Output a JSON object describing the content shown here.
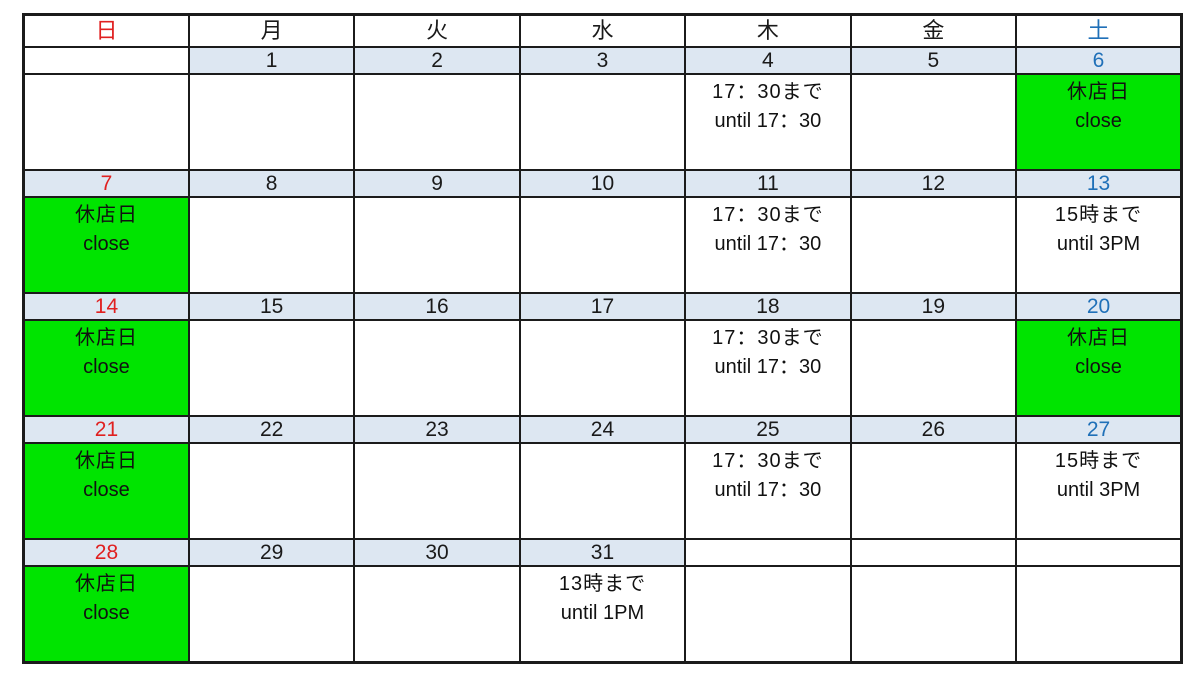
{
  "colors": {
    "sunday_text": "#e02020",
    "saturday_text": "#1f70b8",
    "weekday_text": "#1a1a1a",
    "date_band_bg": "#dde7f2",
    "closed_bg": "#00e400",
    "cell_bg": "#ffffff",
    "border": "#1b1b1b"
  },
  "calendar": {
    "day_headers": [
      {
        "label": "日",
        "tone": "sun"
      },
      {
        "label": "月",
        "tone": "weekday"
      },
      {
        "label": "火",
        "tone": "weekday"
      },
      {
        "label": "水",
        "tone": "weekday"
      },
      {
        "label": "木",
        "tone": "weekday"
      },
      {
        "label": "金",
        "tone": "weekday"
      },
      {
        "label": "土",
        "tone": "sat"
      }
    ],
    "weeks": [
      {
        "dates": [
          {
            "day": "",
            "tone": "weekday",
            "band": false
          },
          {
            "day": "1",
            "tone": "weekday",
            "band": true
          },
          {
            "day": "2",
            "tone": "weekday",
            "band": true
          },
          {
            "day": "3",
            "tone": "weekday",
            "band": true
          },
          {
            "day": "4",
            "tone": "weekday",
            "band": true
          },
          {
            "day": "5",
            "tone": "weekday",
            "band": true
          },
          {
            "day": "6",
            "tone": "sat",
            "band": true
          }
        ],
        "notes": [
          {
            "l1": "",
            "l2": "",
            "closed": false
          },
          {
            "l1": "",
            "l2": "",
            "closed": false
          },
          {
            "l1": "",
            "l2": "",
            "closed": false
          },
          {
            "l1": "",
            "l2": "",
            "closed": false
          },
          {
            "l1": "17：30まで",
            "l2": "until 17：30",
            "closed": false
          },
          {
            "l1": "",
            "l2": "",
            "closed": false
          },
          {
            "l1": "休店日",
            "l2": "close",
            "closed": true
          }
        ]
      },
      {
        "dates": [
          {
            "day": "7",
            "tone": "sun",
            "band": true
          },
          {
            "day": "8",
            "tone": "weekday",
            "band": true
          },
          {
            "day": "9",
            "tone": "weekday",
            "band": true
          },
          {
            "day": "10",
            "tone": "weekday",
            "band": true
          },
          {
            "day": "11",
            "tone": "weekday",
            "band": true
          },
          {
            "day": "12",
            "tone": "weekday",
            "band": true
          },
          {
            "day": "13",
            "tone": "sat",
            "band": true
          }
        ],
        "notes": [
          {
            "l1": "休店日",
            "l2": "close",
            "closed": true
          },
          {
            "l1": "",
            "l2": "",
            "closed": false
          },
          {
            "l1": "",
            "l2": "",
            "closed": false
          },
          {
            "l1": "",
            "l2": "",
            "closed": false
          },
          {
            "l1": "17：30まで",
            "l2": "until 17：30",
            "closed": false
          },
          {
            "l1": "",
            "l2": "",
            "closed": false
          },
          {
            "l1": "15時まで",
            "l2": "until 3PM",
            "closed": false
          }
        ]
      },
      {
        "dates": [
          {
            "day": "14",
            "tone": "sun",
            "band": true
          },
          {
            "day": "15",
            "tone": "weekday",
            "band": true
          },
          {
            "day": "16",
            "tone": "weekday",
            "band": true
          },
          {
            "day": "17",
            "tone": "weekday",
            "band": true
          },
          {
            "day": "18",
            "tone": "weekday",
            "band": true
          },
          {
            "day": "19",
            "tone": "weekday",
            "band": true
          },
          {
            "day": "20",
            "tone": "sat",
            "band": true
          }
        ],
        "notes": [
          {
            "l1": "休店日",
            "l2": "close",
            "closed": true
          },
          {
            "l1": "",
            "l2": "",
            "closed": false
          },
          {
            "l1": "",
            "l2": "",
            "closed": false
          },
          {
            "l1": "",
            "l2": "",
            "closed": false
          },
          {
            "l1": "17：30まで",
            "l2": "until 17：30",
            "closed": false
          },
          {
            "l1": "",
            "l2": "",
            "closed": false
          },
          {
            "l1": "休店日",
            "l2": "close",
            "closed": true
          }
        ]
      },
      {
        "dates": [
          {
            "day": "21",
            "tone": "sun",
            "band": true
          },
          {
            "day": "22",
            "tone": "weekday",
            "band": true
          },
          {
            "day": "23",
            "tone": "weekday",
            "band": true
          },
          {
            "day": "24",
            "tone": "weekday",
            "band": true
          },
          {
            "day": "25",
            "tone": "weekday",
            "band": true
          },
          {
            "day": "26",
            "tone": "weekday",
            "band": true
          },
          {
            "day": "27",
            "tone": "sat",
            "band": true
          }
        ],
        "notes": [
          {
            "l1": "休店日",
            "l2": "close",
            "closed": true
          },
          {
            "l1": "",
            "l2": "",
            "closed": false
          },
          {
            "l1": "",
            "l2": "",
            "closed": false
          },
          {
            "l1": "",
            "l2": "",
            "closed": false
          },
          {
            "l1": "17：30まで",
            "l2": "until 17：30",
            "closed": false
          },
          {
            "l1": "",
            "l2": "",
            "closed": false
          },
          {
            "l1": "15時まで",
            "l2": "until 3PM",
            "closed": false
          }
        ]
      },
      {
        "dates": [
          {
            "day": "28",
            "tone": "sun",
            "band": true
          },
          {
            "day": "29",
            "tone": "weekday",
            "band": true
          },
          {
            "day": "30",
            "tone": "weekday",
            "band": true
          },
          {
            "day": "31",
            "tone": "weekday",
            "band": true
          },
          {
            "day": "",
            "tone": "weekday",
            "band": false
          },
          {
            "day": "",
            "tone": "weekday",
            "band": false
          },
          {
            "day": "",
            "tone": "weekday",
            "band": false
          }
        ],
        "notes": [
          {
            "l1": "休店日",
            "l2": "close",
            "closed": true
          },
          {
            "l1": "",
            "l2": "",
            "closed": false
          },
          {
            "l1": "",
            "l2": "",
            "closed": false
          },
          {
            "l1": "13時まで",
            "l2": "until 1PM",
            "closed": false
          },
          {
            "l1": "",
            "l2": "",
            "closed": false
          },
          {
            "l1": "",
            "l2": "",
            "closed": false
          },
          {
            "l1": "",
            "l2": "",
            "closed": false
          }
        ]
      }
    ]
  }
}
